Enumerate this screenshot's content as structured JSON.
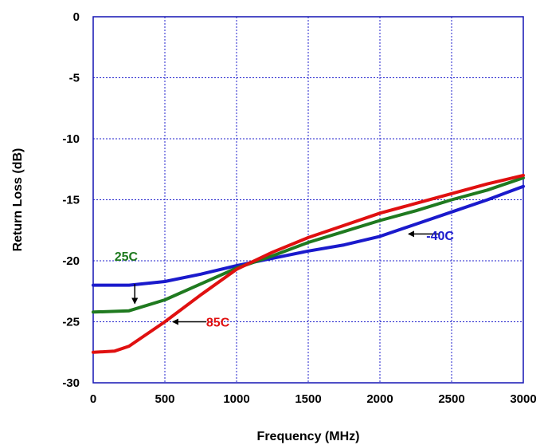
{
  "chart_data": {
    "type": "line",
    "title": "",
    "xlabel": "Frequency (MHz)",
    "ylabel": "Return Loss (dB)",
    "xlim": [
      0,
      3000
    ],
    "ylim": [
      -30,
      0
    ],
    "xticks": [
      0,
      500,
      1000,
      1500,
      2000,
      2500,
      3000
    ],
    "yticks": [
      0,
      -5,
      -10,
      -15,
      -20,
      -25,
      -30
    ],
    "xtick_labels": [
      "0",
      "500",
      "1000",
      "1500",
      "2000",
      "2500",
      "3000"
    ],
    "ytick_labels": [
      "0",
      "-5",
      "-10",
      "-15",
      "-20",
      "-25",
      "-30"
    ],
    "grid": true,
    "series": [
      {
        "name": "-40C",
        "color": "#1a1acc",
        "x": [
          0,
          250,
          500,
          750,
          1000,
          1250,
          1500,
          1750,
          2000,
          2250,
          2500,
          2750,
          3000
        ],
        "y": [
          -22.0,
          -22.0,
          -21.7,
          -21.1,
          -20.4,
          -19.8,
          -19.2,
          -18.7,
          -18.0,
          -17.0,
          -16.0,
          -15.0,
          -13.9
        ]
      },
      {
        "name": "25C",
        "color": "#1f7a1f",
        "x": [
          0,
          250,
          500,
          750,
          1000,
          1250,
          1500,
          1750,
          2000,
          2250,
          2500,
          2750,
          3000
        ],
        "y": [
          -24.2,
          -24.1,
          -23.2,
          -21.9,
          -20.6,
          -19.6,
          -18.5,
          -17.6,
          -16.7,
          -15.9,
          -15.0,
          -14.2,
          -13.2
        ]
      },
      {
        "name": "85C",
        "color": "#e01010",
        "x": [
          0,
          150,
          250,
          500,
          750,
          1000,
          1250,
          1500,
          1750,
          2000,
          2250,
          2500,
          2750,
          3000
        ],
        "y": [
          -27.5,
          -27.4,
          -27.0,
          -25.0,
          -22.8,
          -20.7,
          -19.3,
          -18.1,
          -17.1,
          -16.1,
          -15.3,
          -14.5,
          -13.7,
          -13.0
        ]
      }
    ],
    "annotations": [
      {
        "text": "25C",
        "series": "25C",
        "label_at": [
          230,
          -19.6
        ],
        "arrow_from": [
          290,
          -21.9
        ],
        "arrow_to": [
          290,
          -23.5
        ]
      },
      {
        "text": "85C",
        "series": "85C",
        "label_at": [
          870,
          -25.0
        ],
        "arrow_from": [
          790,
          -25.0
        ],
        "arrow_to": [
          555,
          -25.0
        ]
      },
      {
        "text": "-40C",
        "series": "-40C",
        "label_at": [
          2420,
          -17.9
        ],
        "arrow_from": [
          2410,
          -17.8
        ],
        "arrow_to": [
          2200,
          -17.8
        ]
      }
    ]
  }
}
